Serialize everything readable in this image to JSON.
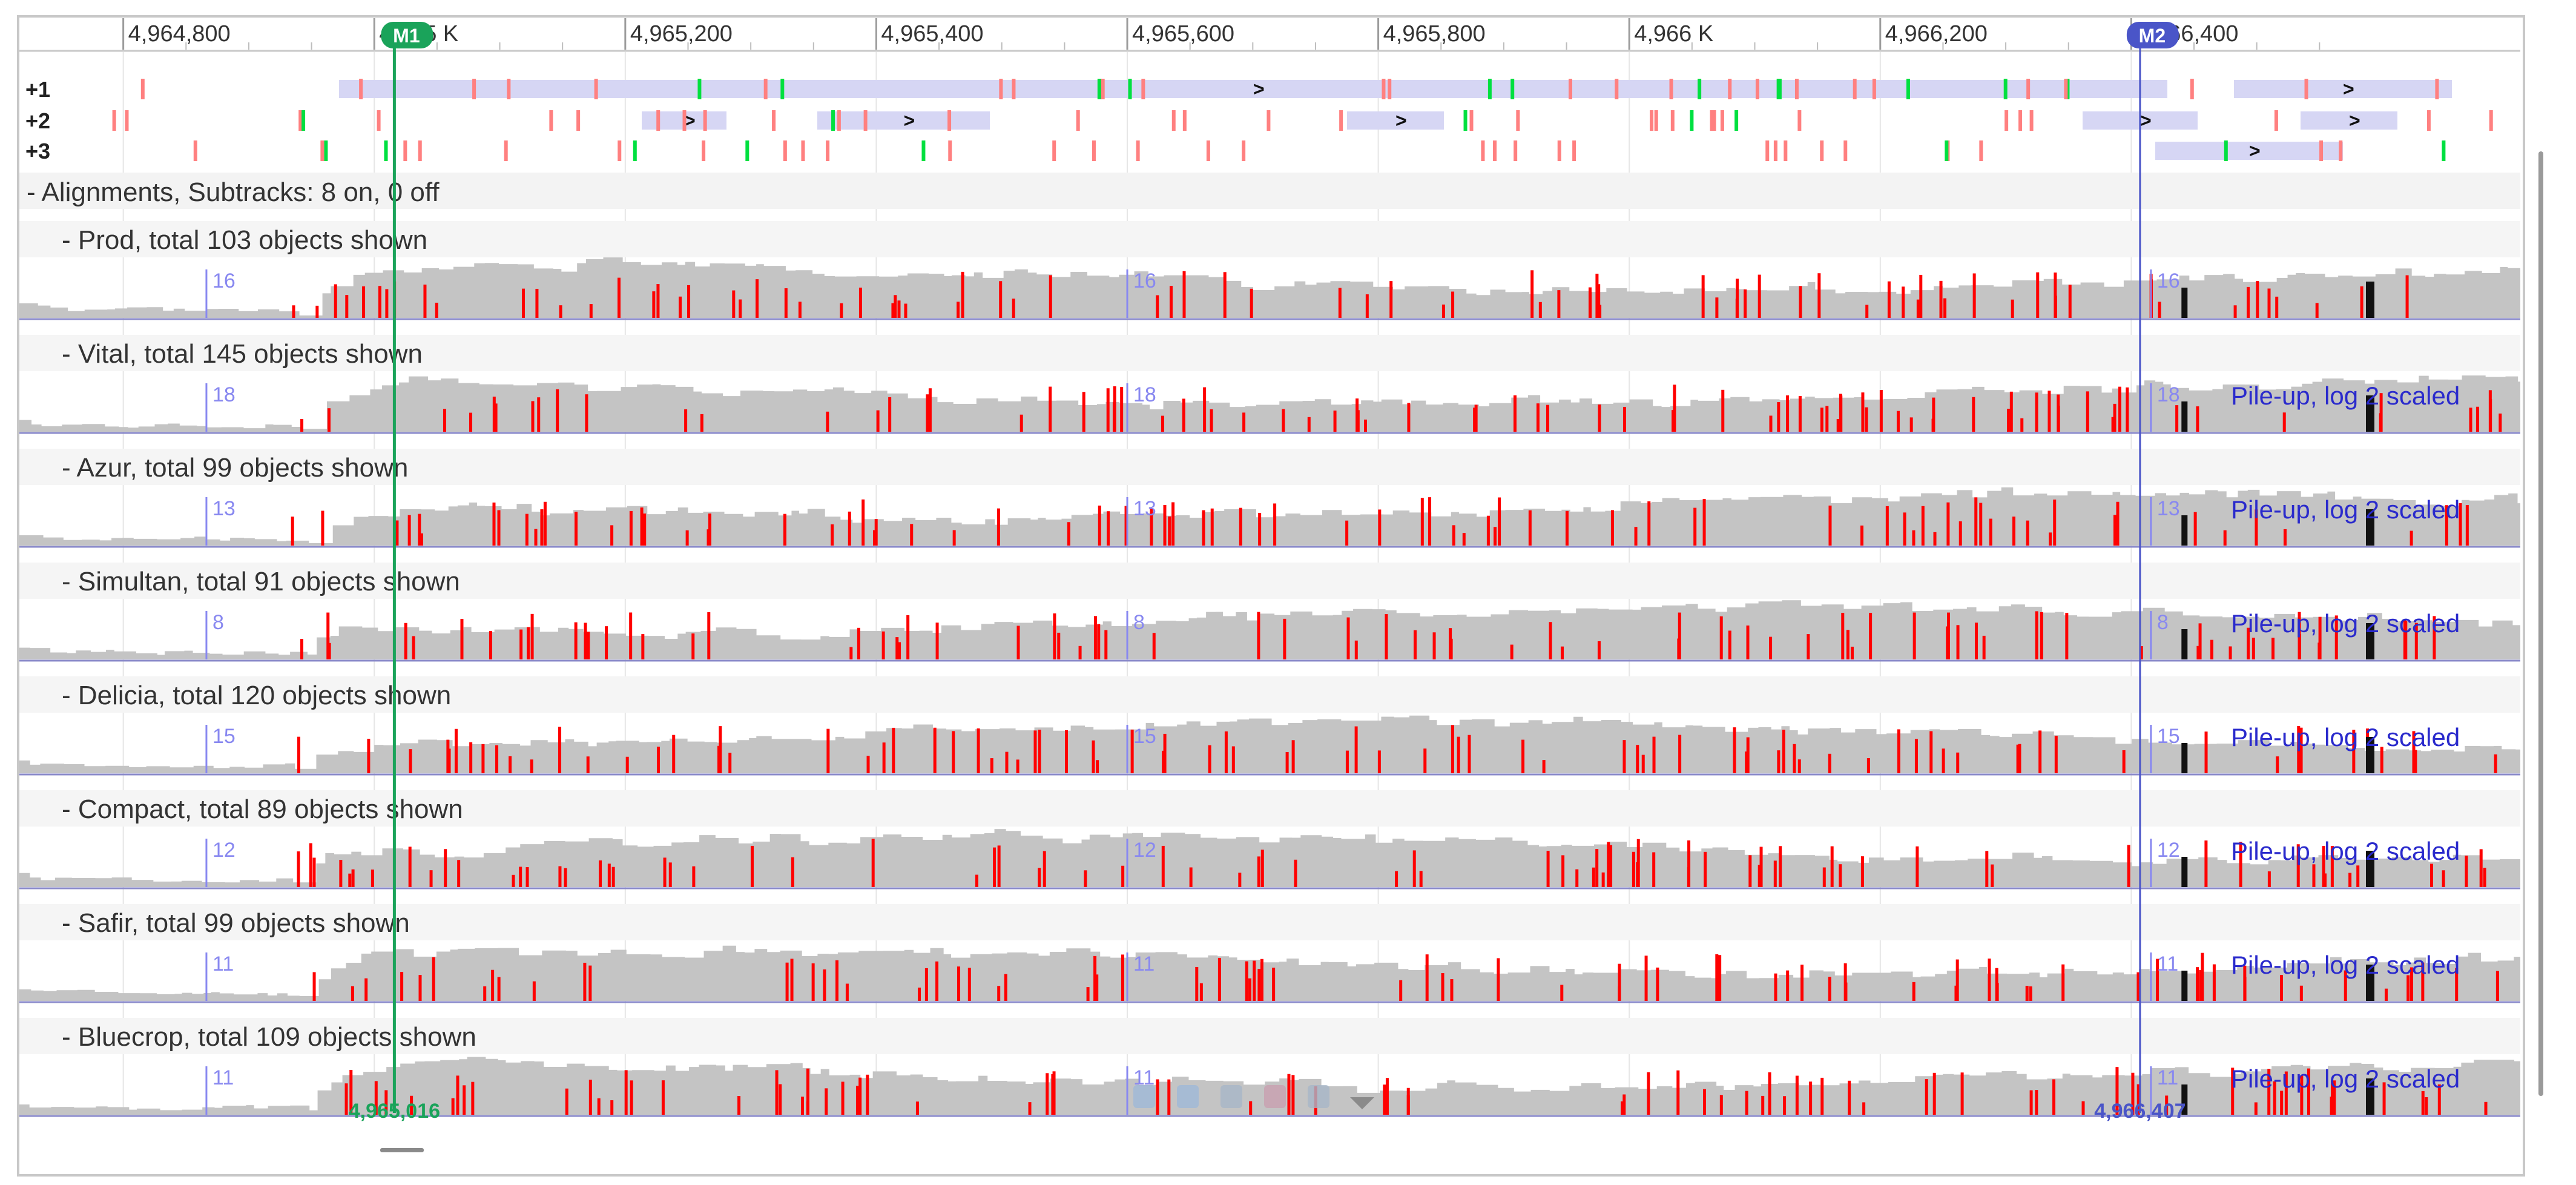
{
  "ruler": {
    "ticks": [
      "4,964,800",
      "4,965 K",
      "4,965,200",
      "4,965,400",
      "4,965,600",
      "4,965,800",
      "4,966 K",
      "4,966,200",
      "4,966,400"
    ],
    "range": [
      4964750,
      4966710
    ]
  },
  "markers": [
    {
      "label": "M1",
      "position_label": "4,965,016",
      "position": 4965016,
      "color": "#1aa35a"
    },
    {
      "label": "M2",
      "position_label": "4,966,407",
      "position": 4966407,
      "color": "#4a55c8"
    }
  ],
  "frames": [
    "+1",
    "+2",
    "+3"
  ],
  "alignments_header": "- Alignments, Subtracks: 8 on, 0 off",
  "tracks": [
    {
      "label": "- Prod, total 103 objects shown",
      "scale": "16",
      "pileup_label": ""
    },
    {
      "label": "- Vital, total 145 objects shown",
      "scale": "18",
      "pileup_label": "Pile-up, log 2 scaled"
    },
    {
      "label": "- Azur, total 99 objects shown",
      "scale": "13",
      "pileup_label": "Pile-up, log 2 scaled"
    },
    {
      "label": "- Simultan, total 91 objects shown",
      "scale": "8",
      "pileup_label": "Pile-up, log 2 scaled"
    },
    {
      "label": "- Delicia, total 120 objects shown",
      "scale": "15",
      "pileup_label": "Pile-up, log 2 scaled"
    },
    {
      "label": "- Compact, total 89 objects shown",
      "scale": "12",
      "pileup_label": "Pile-up, log 2 scaled"
    },
    {
      "label": "- Safir, total 99 objects shown",
      "scale": "11",
      "pileup_label": "Pile-up, log 2 scaled"
    },
    {
      "label": "- Bluecrop, total 109 objects shown",
      "scale": "11",
      "pileup_label": "Pile-up, log 2 scaled"
    }
  ],
  "toolbar_icons": [
    "pan-hand-icon",
    "zoom-fit-icon",
    "ruler-icon",
    "marker-icon",
    "sort-icon",
    "dropdown-icon"
  ],
  "colors": {
    "coverage": "#c4c4c4",
    "mismatch": "#ff0000",
    "start_codon": "#00e040",
    "stop_codon": "#ff8080",
    "orf": "#d6d6f4",
    "scale": "#8888f0",
    "baseline": "#8a8aca"
  }
}
